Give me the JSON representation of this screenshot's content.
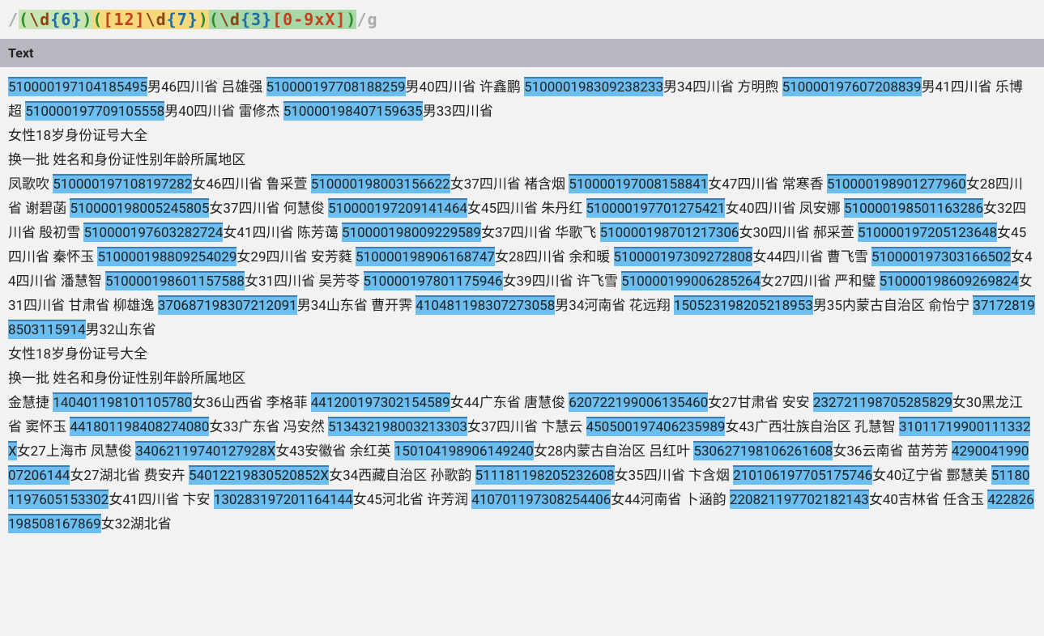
{
  "regex": {
    "delimiter_open": "/",
    "delimiter_close": "/",
    "flags": "g",
    "groups": [
      {
        "open": "(",
        "content_escape": "\\d",
        "content_quant": "{6}",
        "close": ")"
      },
      {
        "open": "(",
        "content_charclass": "[12]",
        "content_escape": "\\d",
        "content_quant": "{7}",
        "close": ")"
      },
      {
        "open": "(",
        "content_escape": "\\d",
        "content_quant": "{3}",
        "content_charclass": "[0-9xX]",
        "close": ")"
      }
    ]
  },
  "text_header": "Text",
  "text_segments": [
    {
      "t": "match",
      "v": "510000197104185495"
    },
    {
      "t": "plain",
      "v": "男46四川省  吕雄强  "
    },
    {
      "t": "match",
      "v": "510000197708188259"
    },
    {
      "t": "plain",
      "v": "男40四川省  许鑫鹏  "
    },
    {
      "t": "match",
      "v": "510000198309238233"
    },
    {
      "t": "plain",
      "v": "男34四川省  方明煦  "
    },
    {
      "t": "match",
      "v": "510000197607208839"
    },
    {
      "t": "plain",
      "v": "男41四川省  乐博超  "
    },
    {
      "t": "match",
      "v": "510000197709105558"
    },
    {
      "t": "plain",
      "v": "男40四川省  雷修杰  "
    },
    {
      "t": "match",
      "v": "510000198407159635"
    },
    {
      "t": "plain",
      "v": "男33四川省"
    },
    {
      "t": "br"
    },
    {
      "t": "plain",
      "v": "女性18岁身份证号大全"
    },
    {
      "t": "br"
    },
    {
      "t": "plain",
      "v": "换一批  姓名和身份证性别年龄所属地区"
    },
    {
      "t": "br"
    },
    {
      "t": "plain",
      "v": "凤歌吹  "
    },
    {
      "t": "match",
      "v": "510000197108197282"
    },
    {
      "t": "plain",
      "v": "女46四川省  鲁采萱  "
    },
    {
      "t": "match",
      "v": "510000198003156622"
    },
    {
      "t": "plain",
      "v": "女37四川省  褚含烟  "
    },
    {
      "t": "match",
      "v": "510000197008158841"
    },
    {
      "t": "plain",
      "v": "女47四川省  常寒香  "
    },
    {
      "t": "match",
      "v": "510000198901277960"
    },
    {
      "t": "plain",
      "v": "女28四川省  谢碧菡  "
    },
    {
      "t": "match",
      "v": "510000198005245805"
    },
    {
      "t": "plain",
      "v": "女37四川省  何慧俊  "
    },
    {
      "t": "match",
      "v": "510000197209141464"
    },
    {
      "t": "plain",
      "v": "女45四川省  朱丹红  "
    },
    {
      "t": "match",
      "v": "510000197701275421"
    },
    {
      "t": "plain",
      "v": "女40四川省  凤安娜  "
    },
    {
      "t": "match",
      "v": "510000198501163286"
    },
    {
      "t": "plain",
      "v": "女32四川省  殷初雪  "
    },
    {
      "t": "match",
      "v": "510000197603282724"
    },
    {
      "t": "plain",
      "v": "女41四川省  陈芳蔼  "
    },
    {
      "t": "match",
      "v": "510000198009229589"
    },
    {
      "t": "plain",
      "v": "女37四川省  华歌飞  "
    },
    {
      "t": "match",
      "v": "510000198701217306"
    },
    {
      "t": "plain",
      "v": "女30四川省  郝采萱  "
    },
    {
      "t": "match",
      "v": "510000197205123648"
    },
    {
      "t": "plain",
      "v": "女45四川省  秦怀玉  "
    },
    {
      "t": "match",
      "v": "510000198809254029"
    },
    {
      "t": "plain",
      "v": "女29四川省  安芳蕤  "
    },
    {
      "t": "match",
      "v": "510000198906168747"
    },
    {
      "t": "plain",
      "v": "女28四川省  余和暖  "
    },
    {
      "t": "match",
      "v": "510000197309272808"
    },
    {
      "t": "plain",
      "v": "女44四川省  曹飞雪  "
    },
    {
      "t": "match",
      "v": "510000197303166502"
    },
    {
      "t": "plain",
      "v": "女44四川省  潘慧智  "
    },
    {
      "t": "match",
      "v": "510000198601157588"
    },
    {
      "t": "plain",
      "v": "女31四川省  吴芳苓  "
    },
    {
      "t": "match",
      "v": "510000197801175946"
    },
    {
      "t": "plain",
      "v": "女39四川省  许飞雪  "
    },
    {
      "t": "match",
      "v": "510000199006285264"
    },
    {
      "t": "plain",
      "v": "女27四川省  严和璧  "
    },
    {
      "t": "match",
      "v": "510000198609269824"
    },
    {
      "t": "plain",
      "v": "女31四川省 甘肃省  柳雄逸  "
    },
    {
      "t": "match",
      "v": "370687198307212091"
    },
    {
      "t": "plain",
      "v": "男34山东省  曹开霁  "
    },
    {
      "t": "match",
      "v": "410481198307273058"
    },
    {
      "t": "plain",
      "v": "男34河南省  花远翔  "
    },
    {
      "t": "match",
      "v": "150523198205218953"
    },
    {
      "t": "plain",
      "v": "男35内蒙古自治区  俞怡宁  "
    },
    {
      "t": "match",
      "v": "371728198503115914"
    },
    {
      "t": "plain",
      "v": "男32山东省"
    },
    {
      "t": "br"
    },
    {
      "t": "plain",
      "v": "女性18岁身份证号大全"
    },
    {
      "t": "br"
    },
    {
      "t": "plain",
      "v": "换一批  姓名和身份证性别年龄所属地区"
    },
    {
      "t": "br"
    },
    {
      "t": "plain",
      "v": "金慧捷  "
    },
    {
      "t": "match",
      "v": "140401198101105780"
    },
    {
      "t": "plain",
      "v": "女36山西省  李格菲  "
    },
    {
      "t": "match",
      "v": "441200197302154589"
    },
    {
      "t": "plain",
      "v": "女44广东省  唐慧俊  "
    },
    {
      "t": "match",
      "v": "620722199006135460"
    },
    {
      "t": "plain",
      "v": "女27甘肃省  安安  "
    },
    {
      "t": "match",
      "v": "232721198705285829"
    },
    {
      "t": "plain",
      "v": "女30黑龙江省  窦怀玉  "
    },
    {
      "t": "match",
      "v": "441801198408274080"
    },
    {
      "t": "plain",
      "v": "女33广东省  冯安然  "
    },
    {
      "t": "match",
      "v": "513432198003213303"
    },
    {
      "t": "plain",
      "v": "女37四川省  卞慧云  "
    },
    {
      "t": "match",
      "v": "450500197406235989"
    },
    {
      "t": "plain",
      "v": "女43广西壮族自治区  孔慧智  "
    },
    {
      "t": "match",
      "v": "31011719900111332X"
    },
    {
      "t": "plain",
      "v": "女27上海市  凤慧俊  "
    },
    {
      "t": "match",
      "v": "34062119740127928X"
    },
    {
      "t": "plain",
      "v": "女43安徽省  余红英  "
    },
    {
      "t": "match",
      "v": "150104198906149240"
    },
    {
      "t": "plain",
      "v": "女28内蒙古自治区  吕红叶  "
    },
    {
      "t": "match",
      "v": "530627198106261608"
    },
    {
      "t": "plain",
      "v": "女36云南省  苗芳芳  "
    },
    {
      "t": "match",
      "v": "429004199007206144"
    },
    {
      "t": "plain",
      "v": "女27湖北省  费安卉  "
    },
    {
      "t": "match",
      "v": "54012219830520852X"
    },
    {
      "t": "plain",
      "v": "女34西藏自治区  孙歌韵  "
    },
    {
      "t": "match",
      "v": "511181198205232608"
    },
    {
      "t": "plain",
      "v": "女35四川省  卞含烟  "
    },
    {
      "t": "match",
      "v": "210106197705175746"
    },
    {
      "t": "plain",
      "v": "女40辽宁省  酆慧美  "
    },
    {
      "t": "match",
      "v": "511801197605153302"
    },
    {
      "t": "plain",
      "v": "女41四川省  卞安  "
    },
    {
      "t": "match",
      "v": "130283197201164144"
    },
    {
      "t": "plain",
      "v": "女45河北省  许芳润  "
    },
    {
      "t": "match",
      "v": "410701197308254406"
    },
    {
      "t": "plain",
      "v": "女44河南省  卜涵韵  "
    },
    {
      "t": "match",
      "v": "220821197702182143"
    },
    {
      "t": "plain",
      "v": "女40吉林省  任含玉  "
    },
    {
      "t": "match",
      "v": "422826198508167869"
    },
    {
      "t": "plain",
      "v": "女32湖北省"
    }
  ],
  "colors": {
    "background": "#f2f2f2",
    "match_bg": "#6cbef0",
    "match_border": "#3a7bb8",
    "header_bg": "#b8b8c0",
    "grp1_bg": "#c6e5b3",
    "grp2_bg": "#f5d97a",
    "grp3_bg": "#a8d8a8"
  }
}
